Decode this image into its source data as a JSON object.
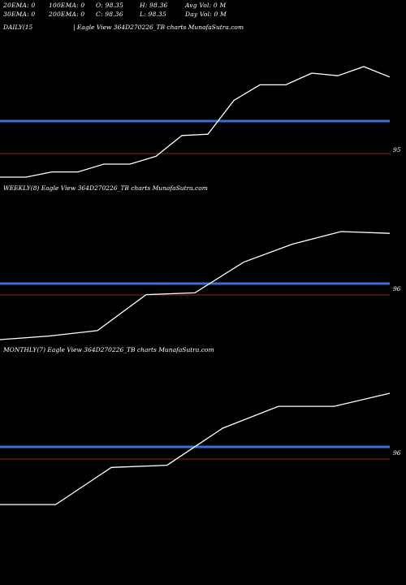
{
  "header": {
    "ema20": "20EMA: 0",
    "ema100": "100EMA: 0",
    "open": "O: 98.35",
    "high": "H: 98.36",
    "avgvol": "Avg Vol: 0  M",
    "ema30": "30EMA: 0",
    "ema200": "200EMA: 0",
    "close": "C: 98.36",
    "low": "L: 98.35",
    "dayvol": "Day Vol: 0  M"
  },
  "colors": {
    "price_line": "#ffffff",
    "ema_band": "#3a6fd8",
    "ref_line": "#8b2a10",
    "background": "#000000"
  },
  "chart_data": [
    {
      "type": "line",
      "name": "DAILY(15",
      "title": "| Eagle  View  364D270226_TB charts MunafaSutra.com",
      "ref_label": "95",
      "series": [
        {
          "values": [
            93.6,
            93.6,
            93.8,
            93.8,
            94.1,
            94.1,
            94.4,
            95.2,
            95.25,
            96.55,
            97.15,
            97.15,
            97.6,
            97.5,
            97.85,
            97.45
          ]
        }
      ]
    },
    {
      "type": "line",
      "name": "WEEKLY(8)",
      "title": "Eagle  View  364D270226_TB charts MunafaSutra.com",
      "ref_label": "96",
      "series": [
        {
          "values": [
            94.4,
            94.5,
            94.65,
            95.65,
            95.7,
            96.55,
            97.05,
            97.4,
            97.35
          ]
        }
      ]
    },
    {
      "type": "line",
      "name": "MONTHLY(7)",
      "title": "Eagle  View  364D270226_TB charts MunafaSutra.com",
      "ref_label": "96",
      "series": [
        {
          "values": [
            93.8,
            93.8,
            94.65,
            94.7,
            95.55,
            96.05,
            96.05,
            96.35
          ]
        }
      ]
    }
  ]
}
